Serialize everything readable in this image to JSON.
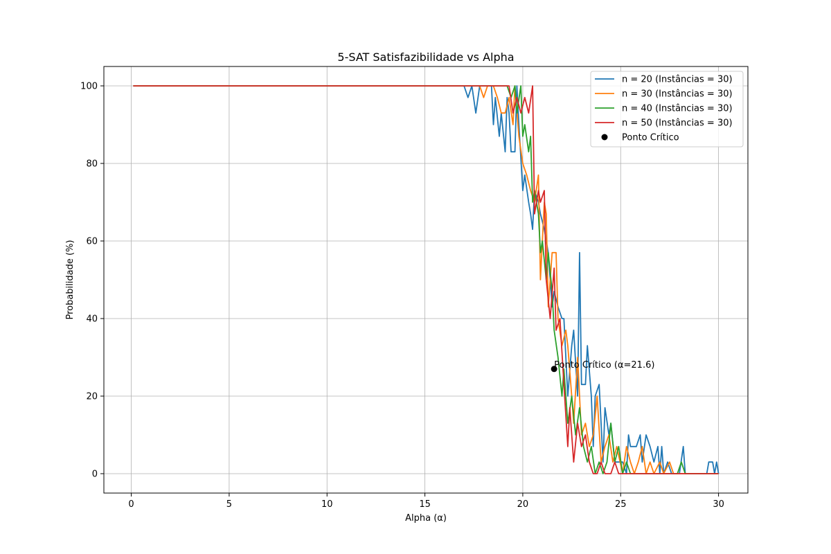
{
  "chart_data": {
    "type": "line",
    "title": "5-SAT Satisfazibilidade vs Alpha",
    "xlabel": "Alpha (α)",
    "ylabel": "Probabilidade (%)",
    "xlim": [
      -1.4,
      31.5
    ],
    "ylim": [
      -5,
      105
    ],
    "xticks": [
      0,
      5,
      10,
      15,
      20,
      25,
      30
    ],
    "yticks": [
      0,
      20,
      40,
      60,
      80,
      100
    ],
    "grid": true,
    "legend_position": "upper-right",
    "series": [
      {
        "name": "n = 20 (Instâncias = 30)",
        "color": "#1f77b4",
        "points": [
          [
            0.1,
            100
          ],
          [
            17.0,
            100
          ],
          [
            17.2,
            97
          ],
          [
            17.4,
            100
          ],
          [
            17.6,
            93
          ],
          [
            17.8,
            100
          ],
          [
            18.0,
            100
          ],
          [
            18.2,
            100
          ],
          [
            18.4,
            100
          ],
          [
            18.5,
            90
          ],
          [
            18.6,
            97
          ],
          [
            18.8,
            87
          ],
          [
            18.9,
            93
          ],
          [
            19.1,
            83
          ],
          [
            19.2,
            97
          ],
          [
            19.3,
            93
          ],
          [
            19.4,
            83
          ],
          [
            19.6,
            83
          ],
          [
            19.7,
            100
          ],
          [
            19.8,
            90
          ],
          [
            20.0,
            73
          ],
          [
            20.1,
            77
          ],
          [
            20.3,
            70
          ],
          [
            20.4,
            67
          ],
          [
            20.5,
            63
          ],
          [
            20.6,
            73
          ],
          [
            20.8,
            70
          ],
          [
            20.9,
            67
          ],
          [
            21.1,
            63
          ],
          [
            21.3,
            57
          ],
          [
            21.4,
            50
          ],
          [
            21.5,
            43
          ],
          [
            21.6,
            47
          ],
          [
            21.8,
            43
          ],
          [
            22.0,
            40
          ],
          [
            22.1,
            40
          ],
          [
            22.3,
            20
          ],
          [
            22.5,
            33
          ],
          [
            22.6,
            37
          ],
          [
            22.8,
            20
          ],
          [
            22.9,
            57
          ],
          [
            23.0,
            23
          ],
          [
            23.2,
            23
          ],
          [
            23.3,
            33
          ],
          [
            23.5,
            20
          ],
          [
            23.6,
            7
          ],
          [
            23.7,
            20
          ],
          [
            23.9,
            23
          ],
          [
            24.1,
            3
          ],
          [
            24.2,
            17
          ],
          [
            24.4,
            10
          ],
          [
            24.5,
            13
          ],
          [
            24.7,
            3
          ],
          [
            24.9,
            3
          ],
          [
            25.1,
            3
          ],
          [
            25.3,
            0
          ],
          [
            25.4,
            10
          ],
          [
            25.5,
            7
          ],
          [
            25.8,
            7
          ],
          [
            26.0,
            10
          ],
          [
            26.1,
            3
          ],
          [
            26.3,
            10
          ],
          [
            26.5,
            7
          ],
          [
            26.7,
            3
          ],
          [
            26.9,
            7
          ],
          [
            27.0,
            0
          ],
          [
            27.1,
            7
          ],
          [
            27.2,
            0
          ],
          [
            27.4,
            3
          ],
          [
            27.6,
            0
          ],
          [
            28.0,
            0
          ],
          [
            28.2,
            7
          ],
          [
            28.3,
            0
          ],
          [
            29.4,
            0
          ],
          [
            29.5,
            3
          ],
          [
            29.7,
            3
          ],
          [
            29.8,
            0
          ],
          [
            29.9,
            3
          ],
          [
            30.0,
            0
          ]
        ]
      },
      {
        "name": "n = 30 (Instâncias = 30)",
        "color": "#ff7f0e",
        "points": [
          [
            0.1,
            100
          ],
          [
            17.8,
            100
          ],
          [
            18.0,
            97
          ],
          [
            18.2,
            100
          ],
          [
            18.5,
            100
          ],
          [
            18.7,
            97
          ],
          [
            18.9,
            93
          ],
          [
            19.1,
            93
          ],
          [
            19.3,
            97
          ],
          [
            19.5,
            90
          ],
          [
            19.6,
            100
          ],
          [
            19.8,
            87
          ],
          [
            20.0,
            80
          ],
          [
            20.2,
            77
          ],
          [
            20.4,
            73
          ],
          [
            20.6,
            70
          ],
          [
            20.8,
            77
          ],
          [
            20.9,
            50
          ],
          [
            21.1,
            70
          ],
          [
            21.2,
            67
          ],
          [
            21.3,
            43
          ],
          [
            21.5,
            57
          ],
          [
            21.7,
            57
          ],
          [
            21.8,
            40
          ],
          [
            22.0,
            33
          ],
          [
            22.2,
            37
          ],
          [
            22.3,
            33
          ],
          [
            22.5,
            20
          ],
          [
            22.6,
            13
          ],
          [
            22.8,
            30
          ],
          [
            23.0,
            10
          ],
          [
            23.2,
            13
          ],
          [
            23.4,
            7
          ],
          [
            23.6,
            10
          ],
          [
            23.8,
            20
          ],
          [
            24.0,
            3
          ],
          [
            24.2,
            7
          ],
          [
            24.4,
            10
          ],
          [
            24.6,
            3
          ],
          [
            24.8,
            7
          ],
          [
            25.1,
            0
          ],
          [
            25.3,
            7
          ],
          [
            25.5,
            3
          ],
          [
            25.7,
            0
          ],
          [
            25.9,
            3
          ],
          [
            26.1,
            7
          ],
          [
            26.3,
            0
          ],
          [
            26.5,
            3
          ],
          [
            26.7,
            0
          ],
          [
            27.0,
            3
          ],
          [
            27.2,
            0
          ],
          [
            27.5,
            3
          ],
          [
            27.7,
            0
          ],
          [
            28.0,
            0
          ],
          [
            30.0,
            0
          ]
        ]
      },
      {
        "name": "n = 40 (Instâncias = 30)",
        "color": "#2ca02c",
        "points": [
          [
            0.1,
            100
          ],
          [
            19.2,
            100
          ],
          [
            19.4,
            97
          ],
          [
            19.6,
            100
          ],
          [
            19.7,
            93
          ],
          [
            19.9,
            100
          ],
          [
            20.0,
            87
          ],
          [
            20.1,
            90
          ],
          [
            20.3,
            83
          ],
          [
            20.4,
            87
          ],
          [
            20.5,
            70
          ],
          [
            20.6,
            73
          ],
          [
            20.8,
            67
          ],
          [
            20.9,
            57
          ],
          [
            21.0,
            60
          ],
          [
            21.2,
            50
          ],
          [
            21.3,
            57
          ],
          [
            21.5,
            47
          ],
          [
            21.6,
            37
          ],
          [
            21.8,
            30
          ],
          [
            22.0,
            20
          ],
          [
            22.1,
            27
          ],
          [
            22.3,
            13
          ],
          [
            22.5,
            20
          ],
          [
            22.7,
            10
          ],
          [
            22.9,
            17
          ],
          [
            23.1,
            7
          ],
          [
            23.3,
            3
          ],
          [
            23.5,
            7
          ],
          [
            23.7,
            0
          ],
          [
            23.9,
            3
          ],
          [
            24.1,
            0
          ],
          [
            24.3,
            3
          ],
          [
            24.5,
            13
          ],
          [
            24.7,
            3
          ],
          [
            24.9,
            7
          ],
          [
            25.1,
            0
          ],
          [
            25.3,
            3
          ],
          [
            25.5,
            0
          ],
          [
            26.0,
            0
          ],
          [
            27.9,
            0
          ],
          [
            28.1,
            3
          ],
          [
            28.3,
            0
          ],
          [
            30.0,
            0
          ]
        ]
      },
      {
        "name": "n = 50 (Instâncias = 30)",
        "color": "#d62728",
        "points": [
          [
            0.1,
            100
          ],
          [
            19.0,
            100
          ],
          [
            19.3,
            100
          ],
          [
            19.5,
            93
          ],
          [
            19.7,
            97
          ],
          [
            19.9,
            93
          ],
          [
            20.1,
            97
          ],
          [
            20.3,
            93
          ],
          [
            20.5,
            100
          ],
          [
            20.6,
            67
          ],
          [
            20.8,
            73
          ],
          [
            20.9,
            70
          ],
          [
            21.1,
            73
          ],
          [
            21.2,
            50
          ],
          [
            21.4,
            40
          ],
          [
            21.6,
            53
          ],
          [
            21.7,
            37
          ],
          [
            21.9,
            40
          ],
          [
            22.1,
            23
          ],
          [
            22.3,
            7
          ],
          [
            22.4,
            17
          ],
          [
            22.6,
            3
          ],
          [
            22.8,
            13
          ],
          [
            23.0,
            7
          ],
          [
            23.2,
            10
          ],
          [
            23.4,
            3
          ],
          [
            23.6,
            0
          ],
          [
            23.8,
            0
          ],
          [
            24.0,
            3
          ],
          [
            24.2,
            0
          ],
          [
            24.5,
            0
          ],
          [
            24.7,
            3
          ],
          [
            24.9,
            0
          ],
          [
            30.0,
            0
          ]
        ]
      }
    ],
    "critical_point": {
      "legend_label": "Ponto Crítico",
      "x": 21.6,
      "y": 27,
      "label": "Ponto Crítico (α=21.6)",
      "color": "#000000"
    }
  }
}
